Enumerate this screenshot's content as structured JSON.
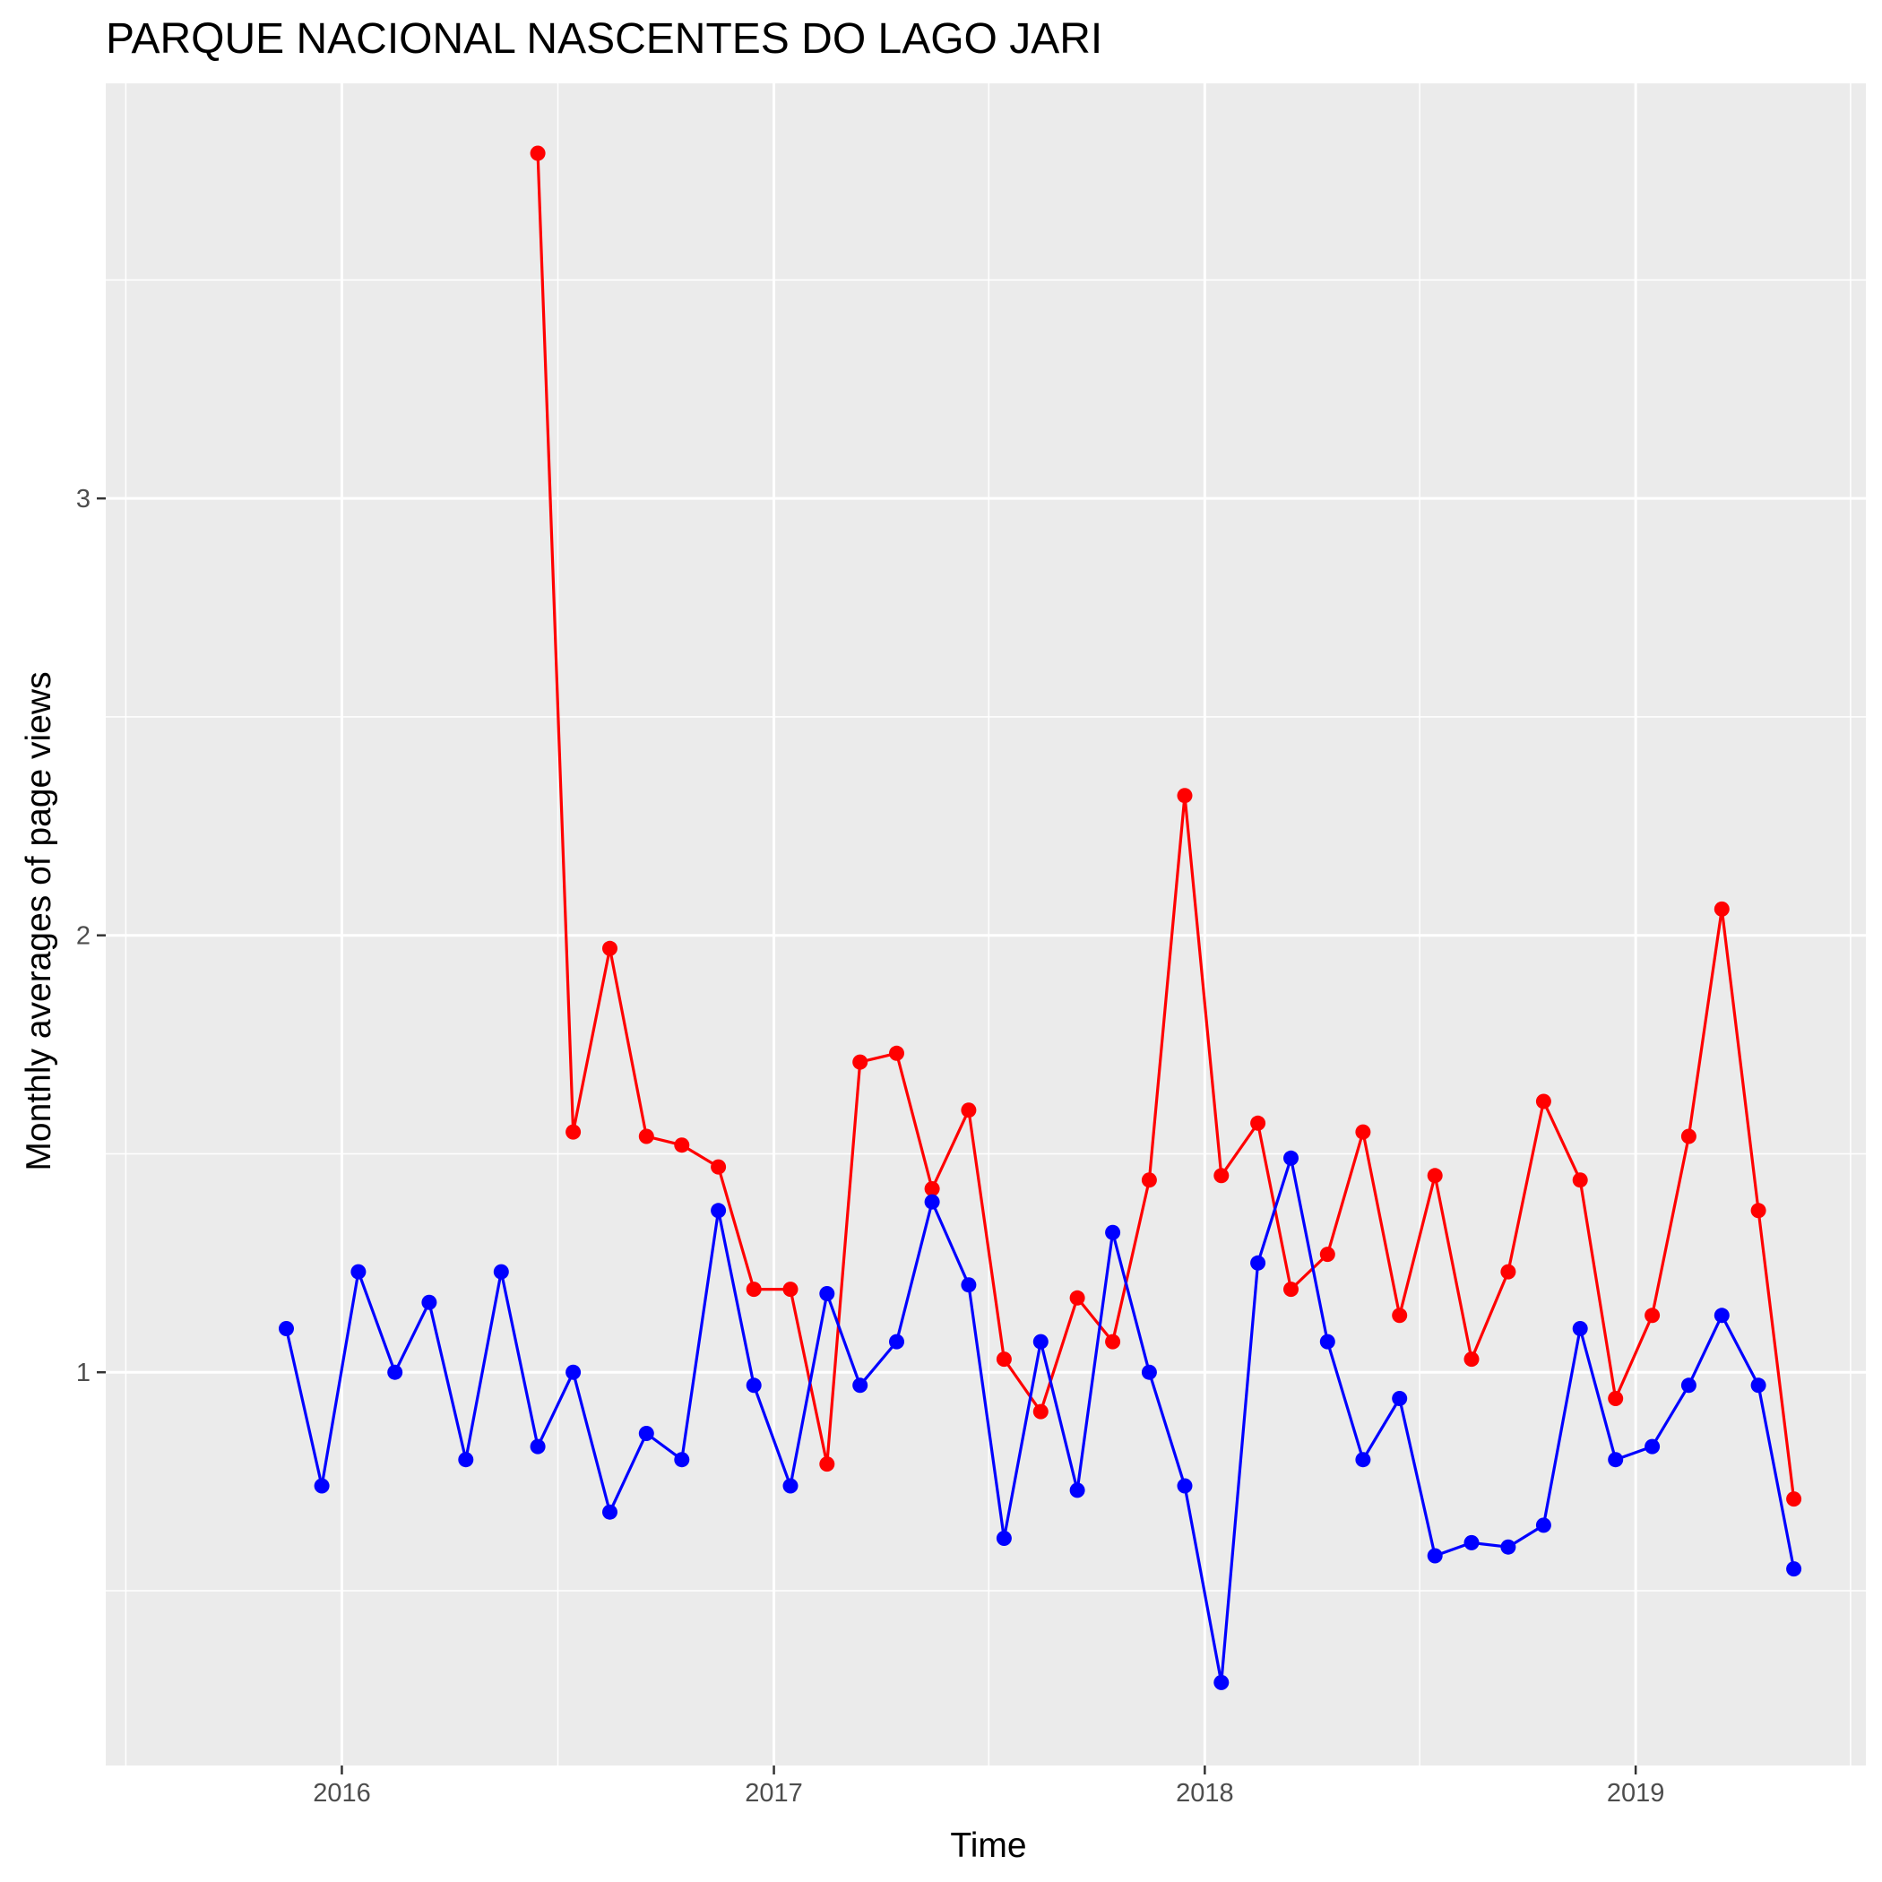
{
  "chart_data": {
    "type": "line",
    "title": "PARQUE NACIONAL NASCENTES DO LAGO JARI",
    "xlabel": "Time",
    "ylabel": "Monthly averages of page views",
    "x_ticks": [
      "2016",
      "2017",
      "2018",
      "2019"
    ],
    "y_ticks": [
      "1",
      "2",
      "3"
    ],
    "xlim": [
      "2015-06-15",
      "2019-07-15"
    ],
    "ylim": [
      0.1,
      3.95
    ],
    "grid": true,
    "legend": "none",
    "colors": {
      "panel": "#ebebeb",
      "grid": "#ffffff",
      "series_red": "#ff0000",
      "series_blue": "#0000ff"
    },
    "series": [
      {
        "color": "#ff0000",
        "x": [
          "2016-06",
          "2016-07",
          "2016-08",
          "2016-09",
          "2016-10",
          "2016-11",
          "2016-12",
          "2017-01",
          "2017-02",
          "2017-03",
          "2017-04",
          "2017-05",
          "2017-06",
          "2017-07",
          "2017-08",
          "2017-09",
          "2017-10",
          "2017-11",
          "2017-12",
          "2018-01",
          "2018-02",
          "2018-03",
          "2018-04",
          "2018-05",
          "2018-06",
          "2018-07",
          "2018-08",
          "2018-09",
          "2018-10",
          "2018-11",
          "2018-12",
          "2019-01",
          "2019-02",
          "2019-03",
          "2019-04",
          "2019-05"
        ],
        "values": [
          3.79,
          1.55,
          1.97,
          1.54,
          1.52,
          1.47,
          1.19,
          1.19,
          0.79,
          1.71,
          1.73,
          1.42,
          1.6,
          1.03,
          0.91,
          1.17,
          1.07,
          1.44,
          2.32,
          1.45,
          1.57,
          1.19,
          1.27,
          1.55,
          1.13,
          1.45,
          1.03,
          1.23,
          1.62,
          1.44,
          0.94,
          1.13,
          1.54,
          2.06,
          1.37,
          0.71
        ]
      },
      {
        "color": "#0000ff",
        "x": [
          "2015-11",
          "2015-12",
          "2016-01",
          "2016-02",
          "2016-03",
          "2016-04",
          "2016-05",
          "2016-06",
          "2016-07",
          "2016-08",
          "2016-09",
          "2016-10",
          "2016-11",
          "2016-12",
          "2017-01",
          "2017-02",
          "2017-03",
          "2017-04",
          "2017-05",
          "2017-06",
          "2017-07",
          "2017-08",
          "2017-09",
          "2017-10",
          "2017-11",
          "2017-12",
          "2018-01",
          "2018-02",
          "2018-03",
          "2018-04",
          "2018-05",
          "2018-06",
          "2018-07",
          "2018-08",
          "2018-09",
          "2018-10",
          "2018-11",
          "2018-12",
          "2019-01",
          "2019-02",
          "2019-03",
          "2019-04",
          "2019-05"
        ],
        "values": [
          1.1,
          0.74,
          1.23,
          1.0,
          1.16,
          0.8,
          1.23,
          0.83,
          1.0,
          0.68,
          0.86,
          0.8,
          1.37,
          0.97,
          0.74,
          1.18,
          0.97,
          1.07,
          1.39,
          1.2,
          0.62,
          1.07,
          0.73,
          1.32,
          1.0,
          0.74,
          0.29,
          1.25,
          1.49,
          1.07,
          0.8,
          0.94,
          0.58,
          0.61,
          0.6,
          0.65,
          1.1,
          0.8,
          0.83,
          0.97,
          1.13,
          0.97,
          0.55
        ]
      }
    ]
  }
}
